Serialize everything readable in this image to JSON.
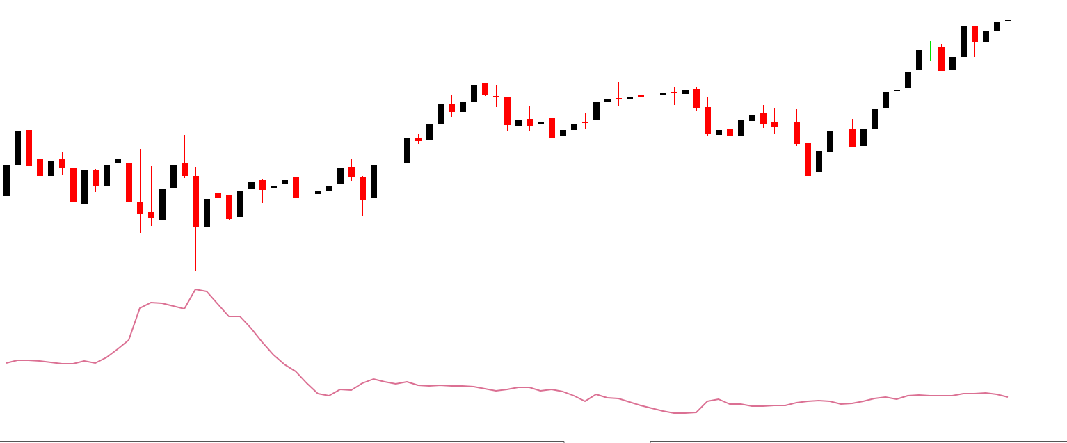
{
  "chart_data": [
    {
      "type": "candlestick",
      "open": [
        118,
        163,
        213,
        172,
        147,
        172,
        158,
        106,
        155,
        133,
        166,
        166,
        109,
        95,
        84,
        129,
        166,
        147,
        73,
        122,
        119,
        88,
        128,
        141,
        130,
        136,
        145,
        null,
        121,
        125,
        135,
        160,
        145,
        115,
        166,
        null,
        166,
        202,
        199,
        222,
        250,
        239,
        254,
        280,
        262,
        260,
        219,
        229,
        222,
        230,
        205,
        213,
        225,
        228,
        254,
        259,
        257,
        264,
        null,
        264,
        267,
        265,
        272,
        246,
        206,
        214,
        205,
        226,
        237,
        225,
        221,
        224,
        194,
        152,
        182,
        null,
        214,
        190,
        215,
        244,
        269,
        273,
        300,
        327,
        332,
        300,
        318,
        363,
        340,
        356,
        370
      ],
      "high": [
        163,
        212,
        213,
        172,
        169,
        182,
        158,
        156,
        157,
        163,
        172,
        186,
        186,
        162,
        128,
        163,
        206,
        160,
        114,
        134,
        119,
        125,
        138,
        143,
        133,
        141,
        147,
        null,
        125,
        133,
        158,
        171,
        147,
        163,
        180,
        null,
        202,
        207,
        222,
        251,
        263,
        254,
        278,
        280,
        278,
        260,
        227,
        247,
        225,
        245,
        213,
        222,
        237,
        254,
        257,
        282,
        260,
        274,
        null,
        266,
        275,
        270,
        275,
        260,
        213,
        223,
        227,
        234,
        249,
        245,
        222,
        243,
        196,
        183,
        212,
        null,
        229,
        214,
        243,
        267,
        271,
        297,
        328,
        341,
        337,
        318,
        363,
        363,
        356,
        368,
        371
      ],
      "low": [
        118,
        163,
        159,
        123,
        147,
        148,
        110,
        106,
        124,
        133,
        166,
        98,
        65,
        75,
        84,
        129,
        144,
        10,
        73,
        104,
        84,
        88,
        128,
        108,
        130,
        136,
        110,
        null,
        121,
        125,
        135,
        140,
        89,
        115,
        156,
        null,
        166,
        193,
        199,
        222,
        232,
        239,
        254,
        262,
        246,
        212,
        219,
        212,
        222,
        200,
        205,
        213,
        214,
        228,
        254,
        247,
        257,
        248,
        null,
        264,
        249,
        265,
        240,
        204,
        206,
        200,
        205,
        226,
        216,
        207,
        221,
        190,
        145,
        152,
        182,
        null,
        189,
        190,
        215,
        244,
        269,
        273,
        300,
        313,
        298,
        300,
        318,
        318,
        340,
        356,
        370
      ],
      "close": [
        163,
        212,
        161,
        147,
        169,
        159,
        110,
        156,
        132,
        163,
        172,
        110,
        92,
        87,
        128,
        163,
        147,
        73,
        114,
        116,
        85,
        125,
        138,
        127,
        133,
        141,
        116,
        null,
        125,
        133,
        158,
        146,
        113,
        163,
        165,
        null,
        202,
        197,
        222,
        251,
        239,
        254,
        278,
        263,
        260,
        220,
        227,
        219,
        225,
        202,
        213,
        222,
        223,
        254,
        257,
        258,
        260,
        261,
        null,
        266,
        266,
        270,
        244,
        208,
        213,
        204,
        227,
        234,
        221,
        218,
        222,
        193,
        147,
        183,
        212,
        null,
        189,
        214,
        243,
        267,
        271,
        297,
        328,
        327,
        298,
        318,
        363,
        340,
        356,
        368,
        371
      ],
      "up_color": "#000000",
      "down_color": "#ff0000",
      "flat_color": "#00e000",
      "ylim": [
        0,
        400
      ]
    },
    {
      "type": "line",
      "values": [
        98,
        102,
        102,
        101,
        99,
        97,
        97,
        101,
        98,
        106,
        118,
        131,
        177,
        185,
        184,
        180,
        176,
        204,
        201,
        183,
        165,
        165,
        148,
        128,
        110,
        96,
        86,
        69,
        54,
        51,
        60,
        59,
        69,
        75,
        71,
        68,
        71,
        66,
        65,
        66,
        65,
        65,
        64,
        61,
        58,
        60,
        63,
        63,
        58,
        60,
        57,
        51,
        43,
        53,
        48,
        47,
        42,
        37,
        33,
        29,
        26,
        26,
        27,
        43,
        46,
        39,
        39,
        36,
        36,
        37,
        37,
        41,
        43,
        44,
        43,
        39,
        40,
        43,
        47,
        49,
        46,
        51,
        52,
        51,
        51,
        51,
        54,
        54,
        55,
        53,
        49
      ],
      "color": "#db7093",
      "ylim": [
        0,
        220
      ]
    }
  ]
}
